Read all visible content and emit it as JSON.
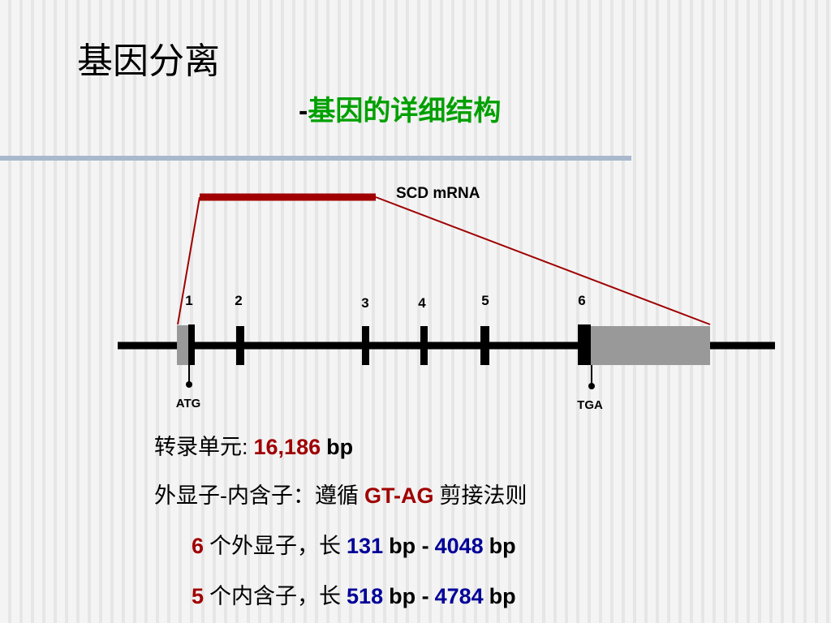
{
  "header": {
    "title": "基因分离",
    "subtitle": [
      {
        "text": "-",
        "color": "#000000"
      },
      {
        "text": "基因的详细结构",
        "color": "#00a000"
      }
    ]
  },
  "diagram": {
    "mrna_label": "SCD mRNA",
    "exon_numbers": [
      "1",
      "2",
      "3",
      "4",
      "5",
      "6"
    ],
    "start_codon": "ATG",
    "stop_codon": "TGA"
  },
  "notes": [
    [
      {
        "text": "转录单元:",
        "color": "#000000"
      },
      {
        "text": "16,186",
        "color": "#a00000"
      },
      {
        "text": "bp",
        "color": "#000000"
      }
    ],
    [
      {
        "text": "外显子-内含子：遵循",
        "color": "#000000"
      },
      {
        "text": "GT-AG",
        "color": "#a00000"
      },
      {
        "text": "剪接法则",
        "color": "#000000"
      }
    ],
    [
      {
        "text": "6",
        "color": "#a00000"
      },
      {
        "text": "个外显子，长",
        "color": "#000000"
      },
      {
        "text": "131",
        "color": "#000099"
      },
      {
        "text": "bp -",
        "color": "#000000"
      },
      {
        "text": "4048",
        "color": "#000099"
      },
      {
        "text": "bp",
        "color": "#000000"
      }
    ],
    [
      {
        "text": "5",
        "color": "#a00000"
      },
      {
        "text": "个内含子，长",
        "color": "#000000"
      },
      {
        "text": "518",
        "color": "#000099"
      },
      {
        "text": "bp -",
        "color": "#000000"
      },
      {
        "text": "4784",
        "color": "#000099"
      },
      {
        "text": "bp",
        "color": "#000000"
      }
    ]
  ]
}
